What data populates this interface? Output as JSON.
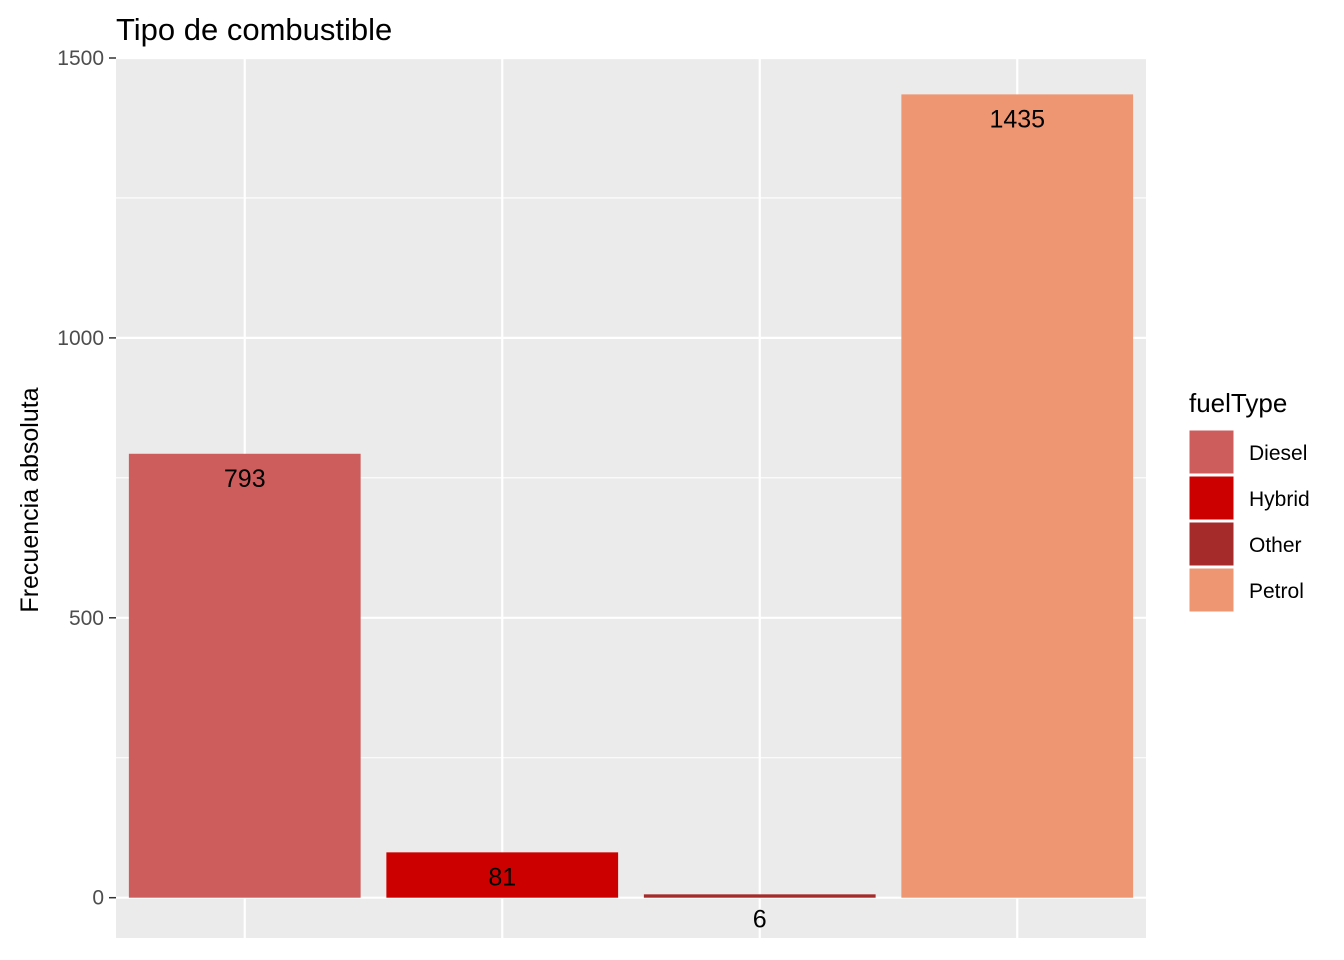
{
  "chart_data": {
    "type": "bar",
    "title": "Tipo de combustible",
    "xlabel": "",
    "ylabel": "Frecuencia absoluta",
    "categories": [
      "Diesel",
      "Hybrid",
      "Other",
      "Petrol"
    ],
    "values": [
      793,
      81,
      6,
      1435
    ],
    "data_labels": [
      "793",
      "81",
      "6",
      "1435"
    ],
    "colors": [
      "#cd5c5c",
      "#cd0000",
      "#a52a2a",
      "#ee9572"
    ],
    "ylim": [
      -72,
      1500
    ],
    "yticks": [
      0,
      500,
      1000,
      1500
    ],
    "ytick_labels": [
      "0",
      "500",
      "1000",
      "1500"
    ],
    "grid": true,
    "x_tick_labels_shown": false,
    "legend": {
      "title": "fuelType",
      "position": "right",
      "entries": [
        "Diesel",
        "Hybrid",
        "Other",
        "Petrol"
      ]
    }
  }
}
